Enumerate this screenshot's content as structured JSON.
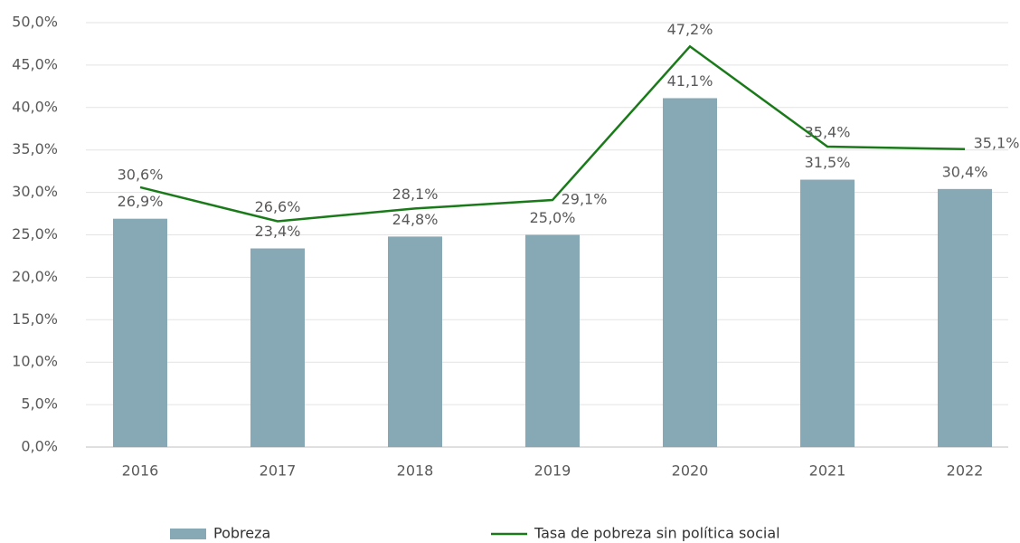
{
  "chart_data": {
    "type": "combo",
    "categories": [
      "2016",
      "2017",
      "2018",
      "2019",
      "2020",
      "2021",
      "2022"
    ],
    "series": [
      {
        "name": "Pobreza",
        "type": "bar",
        "color": "#87a9b5",
        "values": [
          26.9,
          23.4,
          24.8,
          25.0,
          41.1,
          31.5,
          30.4
        ],
        "value_labels": [
          "26,9%",
          "23,4%",
          "24,8%",
          "25,0%",
          "41,1%",
          "31,5%",
          "30,4%"
        ]
      },
      {
        "name": "Tasa de pobreza sin política social",
        "type": "line",
        "color": "#1a7a1a",
        "values": [
          30.6,
          26.6,
          28.1,
          29.1,
          47.2,
          35.4,
          35.1
        ],
        "value_labels": [
          "30,6%",
          "26,6%",
          "28,1%",
          "29,1%",
          "47,2%",
          "35,4%",
          "35,1%"
        ]
      }
    ],
    "ylim": [
      0,
      50
    ],
    "yticks": [
      {
        "value": 0,
        "label": "0,0%"
      },
      {
        "value": 5,
        "label": "5,0%"
      },
      {
        "value": 10,
        "label": "10,0%"
      },
      {
        "value": 15,
        "label": "15,0%"
      },
      {
        "value": 20,
        "label": "20,0%"
      },
      {
        "value": 25,
        "label": "25,0%"
      },
      {
        "value": 30,
        "label": "30,0%"
      },
      {
        "value": 35,
        "label": "35,0%"
      },
      {
        "value": 40,
        "label": "40,0%"
      },
      {
        "value": 45,
        "label": "45,0%"
      },
      {
        "value": 50,
        "label": "50,0%"
      }
    ],
    "grid": true,
    "legend": "bottom"
  }
}
